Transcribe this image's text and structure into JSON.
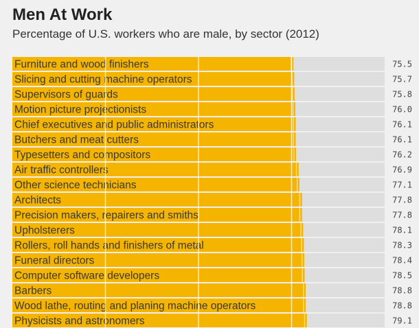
{
  "title": "Men At Work",
  "subtitle": "Percentage of U.S. workers who are male, by sector (2012)",
  "colors": {
    "bar": "#f4b400",
    "track": "#dedede",
    "background": "#f0f0f0",
    "gridline": "#ffffff"
  },
  "chart_data": {
    "type": "bar",
    "orientation": "horizontal",
    "title": "Men At Work",
    "subtitle": "Percentage of U.S. workers who are male, by sector (2012)",
    "xlim": [
      0,
      100
    ],
    "grid": true,
    "categories": [
      "Furniture and wood finishers",
      "Slicing and cutting machine operators",
      "Supervisors of guards",
      "Motion picture projectionists",
      "Chief executives and public administrators",
      "Butchers and meat cutters",
      "Typesetters and compositors",
      "Air traffic controllers",
      "Other science technicians",
      "Architects",
      "Precision makers, repairers and smiths",
      "Upholsterers",
      "Rollers, roll hands and finishers of metal",
      "Funeral directors",
      "Computer software developers",
      "Barbers",
      "Wood lathe, routing and planing machine operators",
      "Physicists and astronomers"
    ],
    "values": [
      75.5,
      75.7,
      75.8,
      76.0,
      76.1,
      76.1,
      76.2,
      76.9,
      77.1,
      77.8,
      77.8,
      78.1,
      78.3,
      78.4,
      78.5,
      78.8,
      78.8,
      79.1
    ],
    "value_labels": [
      "75.5",
      "75.7",
      "75.8",
      "76.0",
      "76.1",
      "76.1",
      "76.2",
      "76.9",
      "77.1",
      "77.8",
      "77.8",
      "78.1",
      "78.3",
      "78.4",
      "78.5",
      "78.8",
      "78.8",
      "79.1"
    ]
  }
}
